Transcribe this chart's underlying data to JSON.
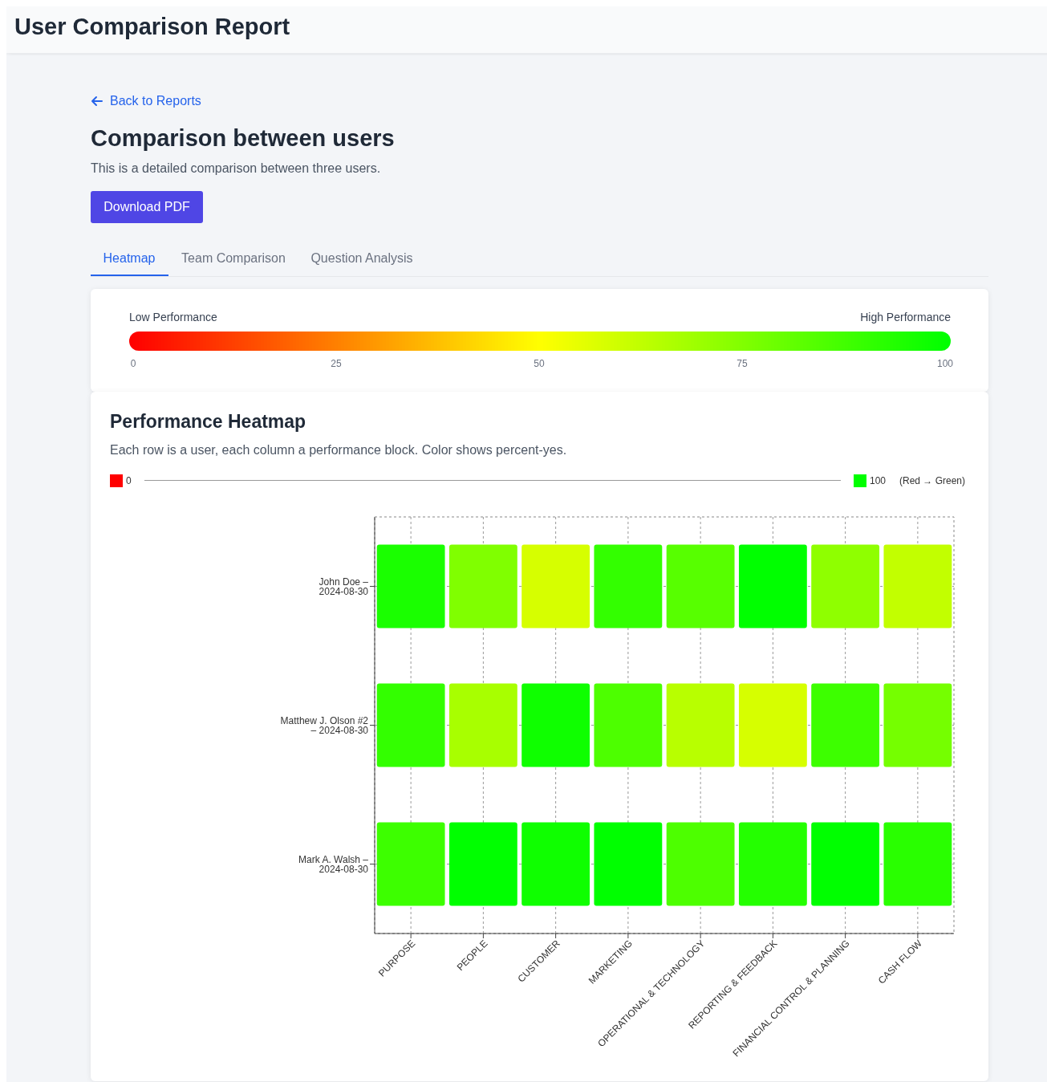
{
  "chart_data": {
    "type": "heatmap",
    "title": "Performance Heatmap",
    "subtitle": "Each row is a user, each column a performance block. Color shows percent-yes.",
    "categories": [
      "PURPOSE",
      "PEOPLE",
      "CUSTOMER",
      "MARKETING",
      "OPERATIONAL & TECHNOLOGY",
      "REPORTING & FEEDBACK",
      "FINANCIAL CONTROL & PLANNING",
      "CASH FLOW"
    ],
    "y_categories": [
      "John Doe – 2024-08-30",
      "Matthew J. Olson #2 – 2024-08-30",
      "Mark A. Walsh – 2024-08-30"
    ],
    "cells": [
      [
        95,
        75,
        58,
        90,
        83,
        100,
        72,
        62
      ],
      [
        90,
        67,
        97,
        85,
        64,
        58,
        88,
        77
      ],
      [
        88,
        100,
        97,
        100,
        85,
        93,
        100,
        92
      ]
    ],
    "clim": [
      0,
      100
    ],
    "cticks": [
      0,
      25,
      50,
      75,
      100
    ],
    "grid": true,
    "annotations": [
      "User Comparison Report",
      "Back to Reports",
      "Comparison between users",
      "This is a detailed comparison between three users.",
      "Download PDF",
      "Heatmap",
      "Team Comparison",
      "Question Analysis",
      "Low Performance",
      "High Performance",
      "(Red → Green)",
      "0",
      "100"
    ]
  }
}
